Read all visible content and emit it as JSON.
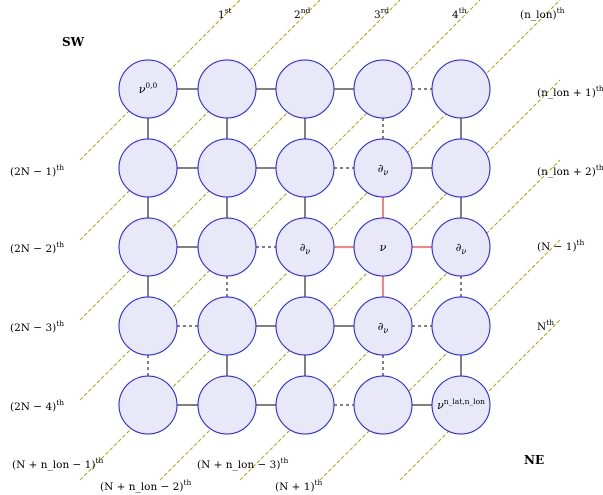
{
  "corners": {
    "sw": "SW",
    "ne": "NE"
  },
  "colors": {
    "node_fill": "#e8e8f8",
    "node_stroke": "#1a1aff",
    "edge": "#000000",
    "highlight_edge": "#ff0000",
    "diagonal": "#b8a000"
  },
  "grid": {
    "rows": 5,
    "cols": 5,
    "nodes": [
      {
        "row": 0,
        "col": 0,
        "label": "ν",
        "sup": "0,0"
      },
      {
        "row": 1,
        "col": 3,
        "label": "∂",
        "sub": "ν"
      },
      {
        "row": 2,
        "col": 2,
        "label": "∂",
        "sub": "ν"
      },
      {
        "row": 2,
        "col": 3,
        "label": "ν"
      },
      {
        "row": 2,
        "col": 4,
        "label": "∂",
        "sub": "ν"
      },
      {
        "row": 3,
        "col": 3,
        "label": "∂",
        "sub": "ν"
      },
      {
        "row": 4,
        "col": 4,
        "label": "ν",
        "sup": "n_lat,n_lon"
      }
    ],
    "h_edges": [
      {
        "row": 0,
        "col": 0,
        "style": "solid"
      },
      {
        "row": 0,
        "col": 1,
        "style": "solid"
      },
      {
        "row": 0,
        "col": 2,
        "style": "solid"
      },
      {
        "row": 0,
        "col": 3,
        "style": "dashed"
      },
      {
        "row": 1,
        "col": 0,
        "style": "solid"
      },
      {
        "row": 1,
        "col": 1,
        "style": "solid"
      },
      {
        "row": 1,
        "col": 2,
        "style": "dashed"
      },
      {
        "row": 1,
        "col": 3,
        "style": "solid"
      },
      {
        "row": 2,
        "col": 0,
        "style": "solid"
      },
      {
        "row": 2,
        "col": 1,
        "style": "dashed"
      },
      {
        "row": 2,
        "col": 2,
        "style": "red"
      },
      {
        "row": 2,
        "col": 3,
        "style": "red"
      },
      {
        "row": 3,
        "col": 0,
        "style": "dashed"
      },
      {
        "row": 3,
        "col": 1,
        "style": "solid"
      },
      {
        "row": 3,
        "col": 2,
        "style": "solid"
      },
      {
        "row": 3,
        "col": 3,
        "style": "dashed"
      },
      {
        "row": 4,
        "col": 0,
        "style": "solid"
      },
      {
        "row": 4,
        "col": 1,
        "style": "solid"
      },
      {
        "row": 4,
        "col": 2,
        "style": "dashed"
      },
      {
        "row": 4,
        "col": 3,
        "style": "solid"
      }
    ],
    "v_edges": [
      {
        "row": 0,
        "col": 0,
        "style": "solid"
      },
      {
        "row": 0,
        "col": 1,
        "style": "solid"
      },
      {
        "row": 0,
        "col": 2,
        "style": "solid"
      },
      {
        "row": 0,
        "col": 3,
        "style": "dashed"
      },
      {
        "row": 0,
        "col": 4,
        "style": "solid"
      },
      {
        "row": 1,
        "col": 0,
        "style": "solid"
      },
      {
        "row": 1,
        "col": 1,
        "style": "solid"
      },
      {
        "row": 1,
        "col": 2,
        "style": "solid"
      },
      {
        "row": 1,
        "col": 3,
        "style": "red"
      },
      {
        "row": 1,
        "col": 4,
        "style": "solid"
      },
      {
        "row": 2,
        "col": 0,
        "style": "solid"
      },
      {
        "row": 2,
        "col": 1,
        "style": "dashed"
      },
      {
        "row": 2,
        "col": 2,
        "style": "solid"
      },
      {
        "row": 2,
        "col": 3,
        "style": "red"
      },
      {
        "row": 2,
        "col": 4,
        "style": "dashed"
      },
      {
        "row": 3,
        "col": 0,
        "style": "dashed"
      },
      {
        "row": 3,
        "col": 1,
        "style": "solid"
      },
      {
        "row": 3,
        "col": 2,
        "style": "solid"
      },
      {
        "row": 3,
        "col": 3,
        "style": "dashed"
      },
      {
        "row": 3,
        "col": 4,
        "style": "solid"
      }
    ]
  },
  "diagonal_labels": [
    {
      "id": "1st",
      "base": "1",
      "sup": "st"
    },
    {
      "id": "2nd",
      "base": "2",
      "sup": "nd"
    },
    {
      "id": "3rd",
      "base": "3",
      "sup": "rd"
    },
    {
      "id": "4th",
      "base": "4",
      "sup": "th"
    },
    {
      "id": "nlon",
      "base": "(n_lon)",
      "sup": "th"
    },
    {
      "id": "nlon1",
      "base": "(n_lon + 1)",
      "sup": "th"
    },
    {
      "id": "nlon2",
      "base": "(n_lon + 2)",
      "sup": "th"
    },
    {
      "id": "N1",
      "base": "(N − 1)",
      "sup": "th"
    },
    {
      "id": "N",
      "base": "N",
      "sup": "th"
    },
    {
      "id": "2N1",
      "base": "(2N − 1)",
      "sup": "th"
    },
    {
      "id": "2N2",
      "base": "(2N − 2)",
      "sup": "th"
    },
    {
      "id": "2N3",
      "base": "(2N − 3)",
      "sup": "th"
    },
    {
      "id": "2N4",
      "base": "(2N − 4)",
      "sup": "th"
    },
    {
      "id": "Nnlon1",
      "base": "(N + n_lon − 1)",
      "sup": "th"
    },
    {
      "id": "Nnlon2",
      "base": "(N + n_lon − 2)",
      "sup": "th"
    },
    {
      "id": "Nnlon3",
      "base": "(N + n_lon − 3)",
      "sup": "th"
    },
    {
      "id": "Np1",
      "base": "(N + 1)",
      "sup": "th"
    }
  ]
}
